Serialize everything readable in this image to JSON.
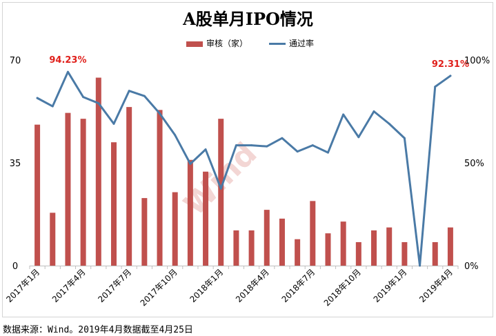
{
  "chart_data": {
    "type": "bar",
    "title": "A股单月IPO情况",
    "categories": [
      "2017年1月",
      "2017年2月",
      "2017年3月",
      "2017年4月",
      "2017年5月",
      "2017年6月",
      "2017年7月",
      "2017年8月",
      "2017年9月",
      "2017年10月",
      "2017年11月",
      "2017年12月",
      "2018年1月",
      "2018年2月",
      "2018年3月",
      "2018年4月",
      "2018年5月",
      "2018年6月",
      "2018年7月",
      "2018年8月",
      "2018年9月",
      "2018年10月",
      "2018年11月",
      "2018年12月",
      "2019年1月",
      "2019年2月",
      "2019年3月",
      "2019年4月"
    ],
    "x_tick_labels": [
      "2017年1月",
      "2017年4月",
      "2017年7月",
      "2017年10月",
      "2018年1月",
      "2018年4月",
      "2018年7月",
      "2018年10月",
      "2019年1月",
      "2019年4月"
    ],
    "series": [
      {
        "name": "审核（家）",
        "type": "bar",
        "axis": "left",
        "color": "#c0504d",
        "values": [
          48,
          18,
          52,
          50,
          64,
          42,
          54,
          23,
          53,
          25,
          36,
          32,
          50,
          12,
          12,
          19,
          16,
          9,
          22,
          11,
          15,
          8,
          12,
          13,
          8,
          0,
          8,
          13
        ]
      },
      {
        "name": "通过率",
        "type": "line",
        "axis": "right",
        "color": "#4a7aa6",
        "values": [
          81.5,
          77.5,
          94.23,
          82,
          79,
          69,
          85,
          82.5,
          74,
          63.5,
          49.5,
          56.5,
          37.5,
          58.5,
          58.5,
          58,
          62,
          55.5,
          58.5,
          55,
          73.5,
          62.5,
          75,
          69,
          62,
          0,
          87,
          92.31
        ]
      }
    ],
    "y_left": {
      "ticks": [
        "0",
        "35",
        "70"
      ],
      "ylim": [
        0,
        70
      ]
    },
    "y_right": {
      "ticks": [
        "0%",
        "50%",
        "100%"
      ],
      "ylim": [
        0,
        100
      ]
    },
    "annotations": [
      {
        "text": "94.23%",
        "index": 2,
        "color": "#e0201b"
      },
      {
        "text": "92.31%",
        "index": 27,
        "color": "#e0201b"
      }
    ],
    "watermark": "Wind",
    "grid": false,
    "legend_position": "top-center"
  },
  "legend": {
    "bar_label": "审核（家）",
    "line_label": "通过率"
  },
  "source": "数据来源：Wind。2019年4月数据截至4月25日"
}
